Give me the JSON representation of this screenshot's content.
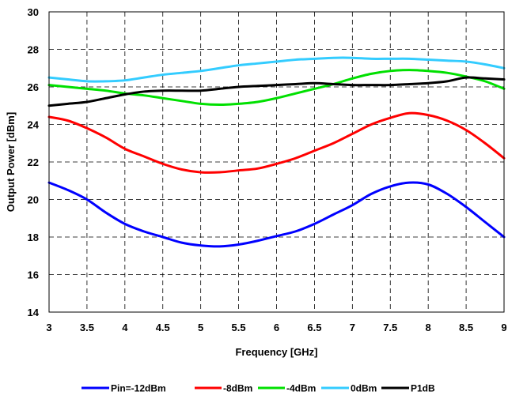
{
  "chart_data": {
    "type": "line",
    "title": "",
    "xlabel": "Frequency  [GHz]",
    "ylabel": "Output Power  [dBm]",
    "xlim": [
      3,
      9
    ],
    "ylim": [
      14,
      30
    ],
    "xticks": [
      3,
      3.5,
      4,
      4.5,
      5,
      5.5,
      6,
      6.5,
      7,
      7.5,
      8,
      8.5,
      9
    ],
    "xtick_labels": [
      "3",
      "3.5",
      "4",
      "4.5",
      "5",
      "5.5",
      "6",
      "6.5",
      "7",
      "7.5",
      "8",
      "8.5",
      "9"
    ],
    "yticks": [
      14,
      16,
      18,
      20,
      22,
      24,
      26,
      28,
      30
    ],
    "ytick_labels": [
      "14",
      "16",
      "18",
      "20",
      "22",
      "24",
      "26",
      "28",
      "30"
    ],
    "grid": true,
    "grid_style": "dashed",
    "legend_position": "bottom",
    "x": [
      3,
      3.25,
      3.5,
      3.75,
      4,
      4.25,
      4.5,
      4.75,
      5,
      5.25,
      5.5,
      5.75,
      6,
      6.25,
      6.5,
      6.75,
      7,
      7.25,
      7.5,
      7.75,
      8,
      8.25,
      8.5,
      8.75,
      9
    ],
    "series": [
      {
        "name": "Pin=-12dBm",
        "color": "#0000ff",
        "values": [
          20.9,
          20.5,
          20.0,
          19.3,
          18.7,
          18.3,
          18.0,
          17.7,
          17.55,
          17.5,
          17.6,
          17.8,
          18.05,
          18.3,
          18.7,
          19.2,
          19.7,
          20.3,
          20.7,
          20.9,
          20.8,
          20.3,
          19.6,
          18.8,
          18.0
        ]
      },
      {
        "name": "-8dBm",
        "color": "#ff0000",
        "values": [
          24.4,
          24.2,
          23.8,
          23.3,
          22.7,
          22.3,
          21.9,
          21.6,
          21.45,
          21.45,
          21.55,
          21.65,
          21.9,
          22.2,
          22.6,
          23.0,
          23.5,
          24.0,
          24.35,
          24.6,
          24.5,
          24.2,
          23.7,
          23.0,
          22.2
        ]
      },
      {
        "name": "-4dBm",
        "color": "#00e000",
        "values": [
          26.1,
          26.0,
          25.9,
          25.8,
          25.65,
          25.55,
          25.4,
          25.25,
          25.1,
          25.05,
          25.1,
          25.2,
          25.4,
          25.65,
          25.9,
          26.15,
          26.45,
          26.7,
          26.85,
          26.9,
          26.85,
          26.75,
          26.55,
          26.3,
          25.9
        ]
      },
      {
        "name": "0dBm",
        "color": "#33ccff",
        "values": [
          26.5,
          26.4,
          26.3,
          26.3,
          26.35,
          26.5,
          26.65,
          26.75,
          26.85,
          27.0,
          27.15,
          27.25,
          27.35,
          27.45,
          27.5,
          27.55,
          27.55,
          27.5,
          27.5,
          27.5,
          27.45,
          27.4,
          27.35,
          27.2,
          27.0
        ]
      },
      {
        "name": "P1dB",
        "color": "#000000",
        "values": [
          25.0,
          25.1,
          25.2,
          25.4,
          25.6,
          25.75,
          25.8,
          25.8,
          25.8,
          25.9,
          26.0,
          26.05,
          26.1,
          26.15,
          26.2,
          26.15,
          26.1,
          26.1,
          26.1,
          26.15,
          26.2,
          26.3,
          26.5,
          26.45,
          26.4
        ]
      }
    ]
  }
}
